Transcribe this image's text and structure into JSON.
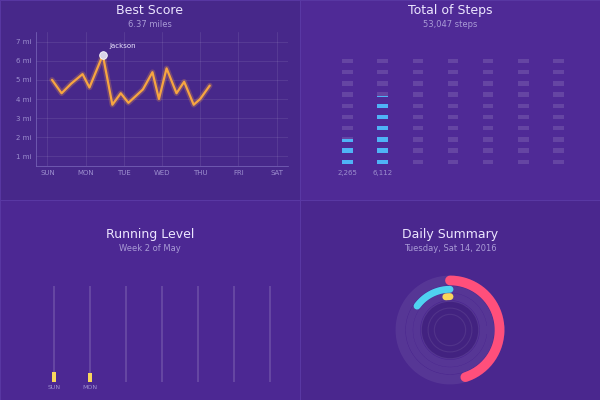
{
  "chart_data": [
    {
      "type": "line",
      "title": "Best Score",
      "subtitle": "6.37 miles",
      "x": [
        0.12,
        0.37,
        0.62,
        0.92,
        1.1,
        1.45,
        1.7,
        1.92,
        2.12,
        2.5,
        2.75,
        2.92,
        3.12,
        3.38,
        3.58,
        3.83,
        4.0,
        4.25
      ],
      "values": [
        5.0,
        4.3,
        4.8,
        5.3,
        4.6,
        6.3,
        3.7,
        4.3,
        3.8,
        4.5,
        5.4,
        4.0,
        5.6,
        4.3,
        4.9,
        3.7,
        4.0,
        4.7
      ],
      "color": "#f7a541",
      "xlim": [
        -0.3,
        6.3
      ],
      "xticks": [
        {
          "value": 0,
          "label": "SUN"
        },
        {
          "value": 1,
          "label": "MON"
        },
        {
          "value": 2,
          "label": "TUE"
        },
        {
          "value": 3,
          "label": "WED"
        },
        {
          "value": 4,
          "label": "THU"
        },
        {
          "value": 5,
          "label": "FRI"
        },
        {
          "value": 6,
          "label": "SAT"
        }
      ],
      "ylim": [
        0.5,
        7.5
      ],
      "yticks": [
        {
          "value": 1,
          "label": "1 mi"
        },
        {
          "value": 2,
          "label": "2 mi"
        },
        {
          "value": 3,
          "label": "3 mi"
        },
        {
          "value": 4,
          "label": "4 mi"
        },
        {
          "value": 5,
          "label": "5 mi"
        },
        {
          "value": 6,
          "label": "6 mi"
        },
        {
          "value": 7,
          "label": "7 mi"
        }
      ],
      "grid": true,
      "annotations": [
        {
          "text": "Jackson",
          "x": 1.45,
          "y": 6.3
        }
      ]
    },
    {
      "type": "bar",
      "title": "Total of Steps",
      "subtitle": "53,047 steps",
      "categories": [
        null,
        null,
        null,
        null,
        null,
        null,
        null
      ],
      "values": [
        2265,
        6112,
        null,
        null,
        null,
        null,
        null
      ],
      "value_labels": [
        "2,265",
        "6,112",
        null,
        null,
        null,
        null,
        null
      ],
      "data_labels": true,
      "color": "#4fb3f6",
      "ylim": [
        0,
        10000
      ],
      "tick_labels": false
    },
    {
      "type": "bar",
      "title": "Running Level",
      "subtitle": "Week 2 of May",
      "categories": [
        "SUN",
        "MON",
        null,
        null,
        null,
        null,
        null
      ],
      "values": [
        1.0,
        0.9,
        null,
        null,
        null,
        null,
        null
      ],
      "color": "#f9d65c",
      "ylim": [
        0,
        10
      ],
      "tick_labels": "x"
    },
    {
      "type": "rings",
      "title": "Daily Summary",
      "subtitle": "Tuesday, Sat 14, 2016",
      "values": [
        45,
        15,
        2
      ],
      "colors": [
        "#ff4f7b",
        "#4fd2f0",
        "#f9d65c"
      ],
      "ylim": [
        0,
        100
      ]
    }
  ]
}
